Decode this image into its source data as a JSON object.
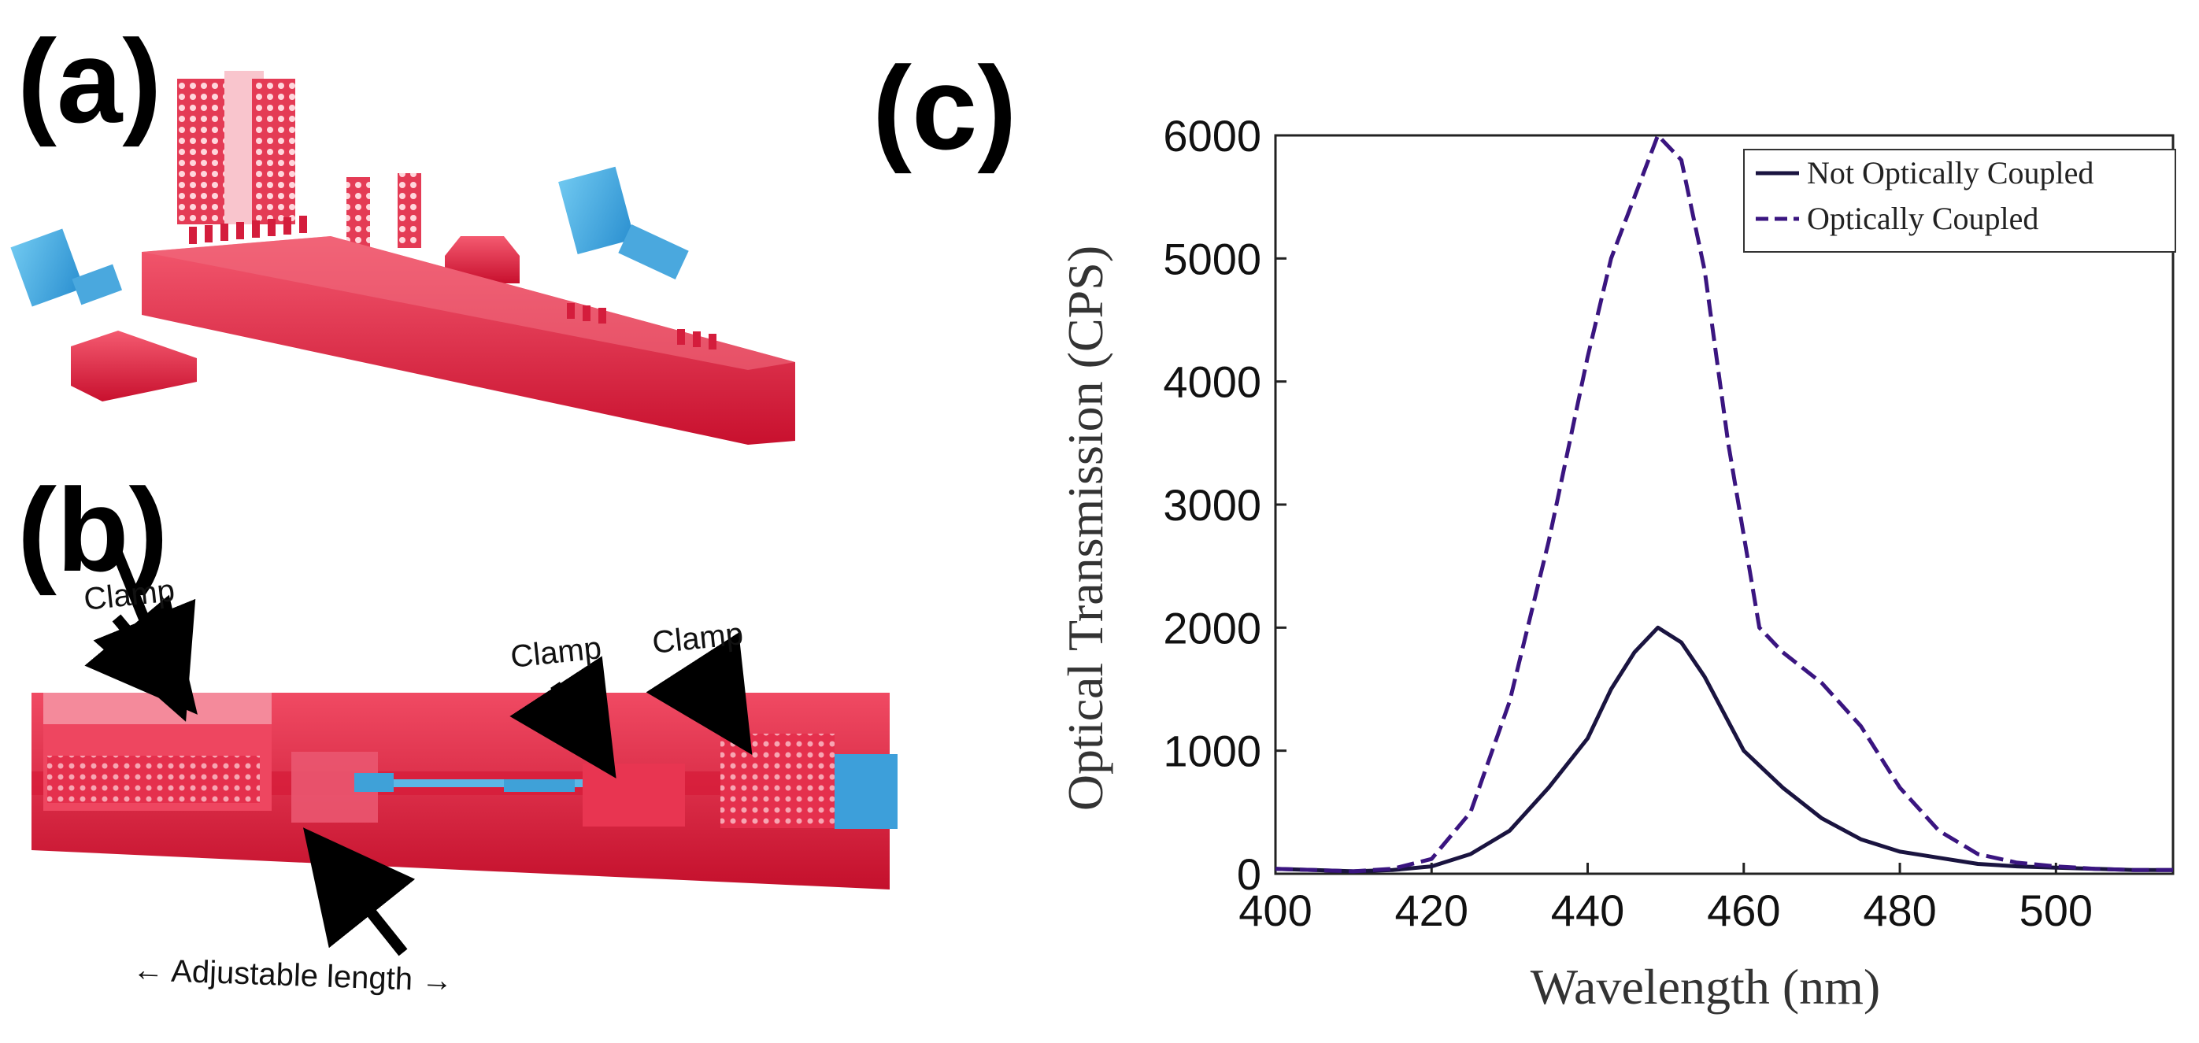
{
  "figure": {
    "panel_labels": [
      "(a)",
      "(b)",
      "(c)"
    ],
    "annotations": {
      "clamp_left": "Clamp",
      "clamp_mid": "Clamp",
      "clamp_right": "Clamp",
      "adjustable": "← Adjustable length →"
    }
  },
  "chart_data": {
    "type": "line",
    "xlabel": "Wavelength (nm)",
    "ylabel": "Optical Transmission (CPS)",
    "xlim": [
      400,
      515
    ],
    "ylim": [
      0,
      6000
    ],
    "xticks": [
      400,
      420,
      440,
      460,
      480,
      500
    ],
    "yticks": [
      0,
      1000,
      2000,
      3000,
      4000,
      5000,
      6000
    ],
    "legend_position": "top-right",
    "series": [
      {
        "name": "Not Optically Coupled",
        "style": "solid",
        "color": "#1a1440",
        "x": [
          400,
          405,
          410,
          415,
          420,
          425,
          430,
          435,
          440,
          443,
          446,
          449,
          452,
          455,
          460,
          463,
          465,
          470,
          475,
          480,
          485,
          490,
          495,
          500,
          505,
          510,
          515
        ],
        "y": [
          40,
          30,
          20,
          30,
          60,
          160,
          350,
          700,
          1100,
          1500,
          1800,
          2000,
          1880,
          1600,
          1000,
          820,
          700,
          450,
          280,
          180,
          130,
          80,
          60,
          50,
          40,
          30,
          30
        ]
      },
      {
        "name": "Optically Coupled",
        "style": "dashed",
        "color": "#3a1580",
        "x": [
          400,
          405,
          410,
          415,
          420,
          425,
          430,
          435,
          440,
          443,
          446,
          449,
          452,
          455,
          458,
          462,
          465,
          470,
          475,
          480,
          485,
          490,
          495,
          500,
          505,
          510,
          515
        ],
        "y": [
          40,
          30,
          20,
          40,
          120,
          500,
          1400,
          2700,
          4200,
          5000,
          5500,
          6000,
          5800,
          4900,
          3500,
          2000,
          1800,
          1550,
          1200,
          700,
          350,
          160,
          90,
          60,
          40,
          30,
          30
        ]
      }
    ]
  }
}
